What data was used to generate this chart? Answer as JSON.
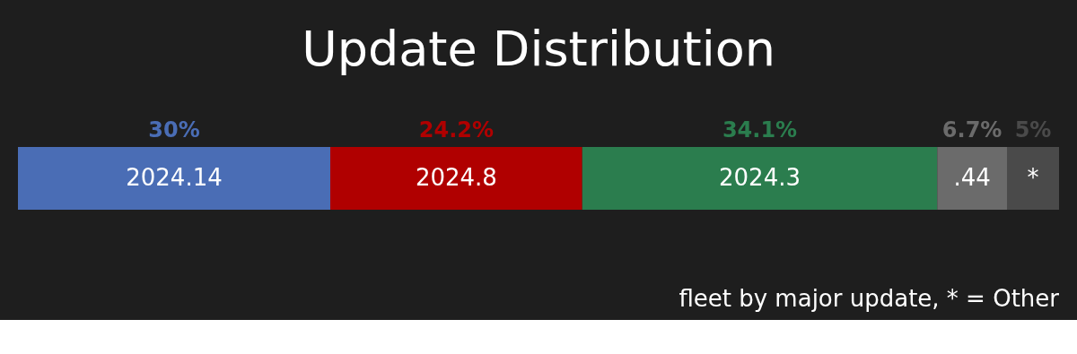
{
  "chart_data": {
    "type": "bar",
    "title": "Update Distribution",
    "orientation": "horizontal",
    "stacked": true,
    "legend": false,
    "categories": [
      null
    ],
    "series": [
      {
        "name": "2024.14",
        "color": "#4a6db5",
        "values": [
          30
        ],
        "value_labels": [
          "30%"
        ]
      },
      {
        "name": "2024.8",
        "color": "#b00000",
        "values": [
          24.2
        ],
        "value_labels": [
          "24.2%"
        ]
      },
      {
        "name": "2024.3",
        "color": "#2b7d4e",
        "values": [
          34.1
        ],
        "value_labels": [
          "34.1%"
        ]
      },
      {
        "name": ".44",
        "color": "#6b6b6b",
        "values": [
          6.7
        ],
        "value_labels": [
          "6.7%"
        ]
      },
      {
        "name": "*",
        "color": "#4a4a4a",
        "values": [
          5
        ],
        "value_labels": [
          "5%"
        ]
      }
    ],
    "annotations": [
      "fleet by major update, * = Other"
    ]
  }
}
